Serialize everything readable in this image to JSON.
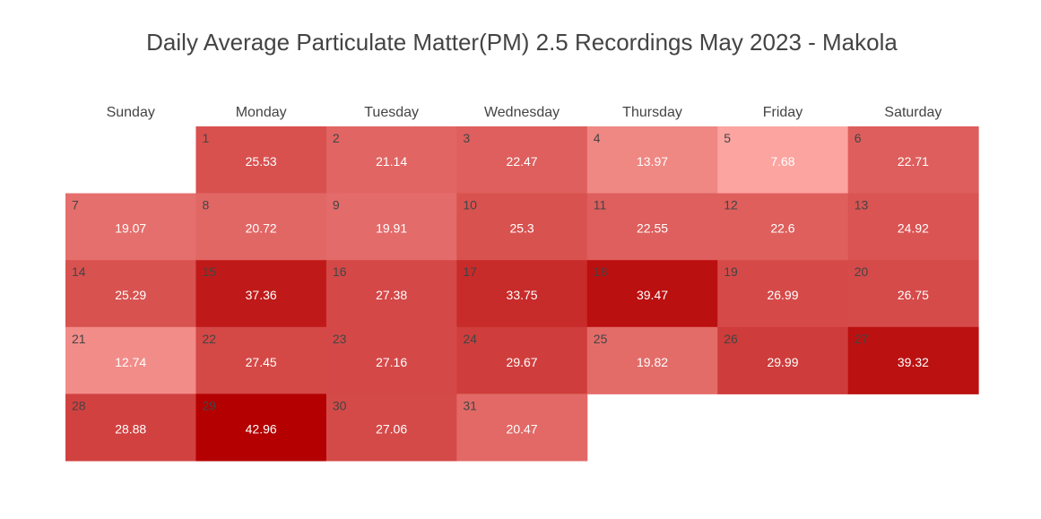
{
  "chart_data": {
    "type": "heatmap",
    "title": "Daily Average Particulate Matter(PM) 2.5 Recordings May 2023 - Makola",
    "weekdays": [
      "Sunday",
      "Monday",
      "Tuesday",
      "Wednesday",
      "Thursday",
      "Friday",
      "Saturday"
    ],
    "first_weekday_index": 1,
    "colorscale": {
      "low": "#fca4a0",
      "high": "#b40000"
    },
    "days": [
      {
        "day": 1,
        "value": 25.53
      },
      {
        "day": 2,
        "value": 21.14
      },
      {
        "day": 3,
        "value": 22.47
      },
      {
        "day": 4,
        "value": 13.97
      },
      {
        "day": 5,
        "value": 7.68
      },
      {
        "day": 6,
        "value": 22.71
      },
      {
        "day": 7,
        "value": 19.07
      },
      {
        "day": 8,
        "value": 20.72
      },
      {
        "day": 9,
        "value": 19.91
      },
      {
        "day": 10,
        "value": 25.3
      },
      {
        "day": 11,
        "value": 22.55
      },
      {
        "day": 12,
        "value": 22.6
      },
      {
        "day": 13,
        "value": 24.92
      },
      {
        "day": 14,
        "value": 25.29
      },
      {
        "day": 15,
        "value": 37.36
      },
      {
        "day": 16,
        "value": 27.38
      },
      {
        "day": 17,
        "value": 33.75
      },
      {
        "day": 18,
        "value": 39.47
      },
      {
        "day": 19,
        "value": 26.99
      },
      {
        "day": 20,
        "value": 26.75
      },
      {
        "day": 21,
        "value": 12.74
      },
      {
        "day": 22,
        "value": 27.45
      },
      {
        "day": 23,
        "value": 27.16
      },
      {
        "day": 24,
        "value": 29.67
      },
      {
        "day": 25,
        "value": 19.82
      },
      {
        "day": 26,
        "value": 29.99
      },
      {
        "day": 27,
        "value": 39.32
      },
      {
        "day": 28,
        "value": 28.88
      },
      {
        "day": 29,
        "value": 42.96
      },
      {
        "day": 30,
        "value": 27.06
      },
      {
        "day": 31,
        "value": 20.47
      }
    ]
  }
}
